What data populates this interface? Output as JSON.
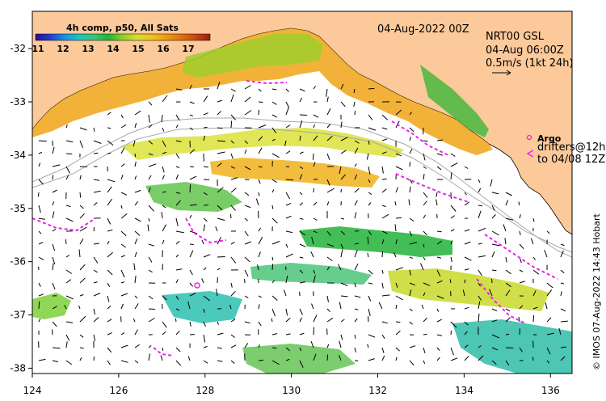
{
  "colorbar": {
    "title": "4h comp, p50, All Sats",
    "ticks": [
      "11",
      "12",
      "13",
      "14",
      "15",
      "16",
      "17"
    ],
    "colors": [
      "#2b0b8f",
      "#1f3fd6",
      "#1f8fe0",
      "#20c3c0",
      "#3fc27a",
      "#22b33a",
      "#8fd02a",
      "#d6e02a",
      "#f0c11a",
      "#f09a10",
      "#e07010",
      "#c74812",
      "#a01a10"
    ]
  },
  "header": {
    "date": "04-Aug-2022 00Z",
    "product": "NRT00 GSL",
    "time": "04-Aug 06:00Z",
    "scale": "0.5m/s (1kt 24h)"
  },
  "legend": {
    "argo": "Argo",
    "drifters_line1": "drifters@12h",
    "drifters_line2": "to 04/08 12Z"
  },
  "credit": "© IMOS 07-Aug-2022 14:43 Hobart",
  "axes": {
    "x_ticks": [
      "124",
      "126",
      "128",
      "130",
      "132",
      "134",
      "136"
    ],
    "y_ticks": [
      "-32",
      "-33",
      "-34",
      "-35",
      "-36",
      "-37",
      "-38"
    ]
  },
  "map_data": {
    "lon_range": [
      124,
      136.5
    ],
    "lat_range": [
      -38.1,
      -31.3
    ],
    "lon_ticks": [
      124,
      126,
      128,
      130,
      132,
      134,
      136
    ],
    "lat_ticks": [
      -32,
      -33,
      -34,
      -35,
      -36,
      -37,
      -38
    ],
    "land_color": "#fbc99a",
    "drifter_color": "#ee22ee",
    "argo_color": "#ee22ee",
    "vector_color": "#000000"
  }
}
